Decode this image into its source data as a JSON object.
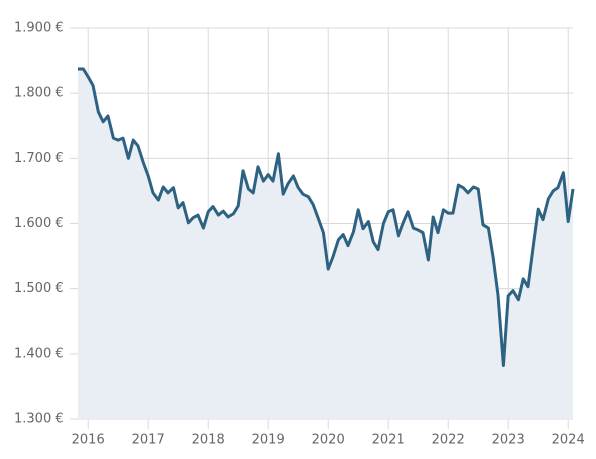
{
  "chart_data": {
    "type": "line",
    "x": [
      2015.83,
      2015.92,
      2016.0,
      2016.08,
      2016.17,
      2016.25,
      2016.33,
      2016.42,
      2016.5,
      2016.58,
      2016.67,
      2016.75,
      2016.83,
      2016.92,
      2017.0,
      2017.08,
      2017.17,
      2017.25,
      2017.33,
      2017.42,
      2017.5,
      2017.58,
      2017.67,
      2017.75,
      2017.83,
      2017.92,
      2018.0,
      2018.08,
      2018.17,
      2018.25,
      2018.33,
      2018.42,
      2018.5,
      2018.58,
      2018.67,
      2018.75,
      2018.83,
      2018.92,
      2019.0,
      2019.08,
      2019.17,
      2019.25,
      2019.33,
      2019.42,
      2019.5,
      2019.58,
      2019.67,
      2019.75,
      2019.83,
      2019.92,
      2020.0,
      2020.08,
      2020.17,
      2020.25,
      2020.33,
      2020.42,
      2020.5,
      2020.58,
      2020.67,
      2020.75,
      2020.83,
      2020.92,
      2021.0,
      2021.08,
      2021.17,
      2021.25,
      2021.33,
      2021.42,
      2021.5,
      2021.58,
      2021.67,
      2021.75,
      2021.83,
      2021.92,
      2022.0,
      2022.08,
      2022.17,
      2022.25,
      2022.33,
      2022.42,
      2022.5,
      2022.58,
      2022.67,
      2022.75,
      2022.83,
      2022.92,
      2023.0,
      2023.08,
      2023.17,
      2023.25,
      2023.33,
      2023.42,
      2023.5,
      2023.58,
      2023.67,
      2023.75,
      2023.83,
      2023.92,
      2024.0,
      2024.08
    ],
    "series": [
      {
        "color": "#2e6282",
        "fill": "#e8eef3",
        "values": [
          1837,
          1837,
          1825,
          1812,
          1771,
          1756,
          1765,
          1731,
          1728,
          1731,
          1700,
          1728,
          1719,
          1693,
          1673,
          1647,
          1636,
          1656,
          1647,
          1655,
          1624,
          1632,
          1601,
          1609,
          1613,
          1593,
          1618,
          1626,
          1613,
          1619,
          1610,
          1615,
          1627,
          1681,
          1653,
          1647,
          1687,
          1665,
          1675,
          1665,
          1707,
          1645,
          1661,
          1673,
          1655,
          1645,
          1641,
          1629,
          1609,
          1586,
          1530,
          1549,
          1575,
          1583,
          1566,
          1587,
          1621,
          1592,
          1603,
          1572,
          1560,
          1600,
          1618,
          1621,
          1581,
          1601,
          1618,
          1593,
          1590,
          1586,
          1544,
          1610,
          1586,
          1621,
          1616,
          1616,
          1659,
          1655,
          1647,
          1656,
          1653,
          1598,
          1593,
          1547,
          1490,
          1382,
          1489,
          1497,
          1483,
          1515,
          1503,
          1567,
          1622,
          1606,
          1638,
          1650,
          1655,
          1678,
          1603,
          1653
        ]
      }
    ],
    "xlim": [
      2015.83,
      2024.08
    ],
    "xticks": [
      2016,
      2017,
      2018,
      2019,
      2020,
      2021,
      2022,
      2023,
      2024
    ],
    "ylim": [
      1300,
      1900
    ],
    "yticks": [
      {
        "value": 1300,
        "label": "1.300 €"
      },
      {
        "value": 1400,
        "label": "1.400 €"
      },
      {
        "value": 1500,
        "label": "1.500 €"
      },
      {
        "value": 1600,
        "label": "1.600 €"
      },
      {
        "value": 1700,
        "label": "1.700 €"
      },
      {
        "value": 1800,
        "label": "1.800 €"
      },
      {
        "value": 1900,
        "label": "1.900 €"
      }
    ],
    "grid": true
  }
}
